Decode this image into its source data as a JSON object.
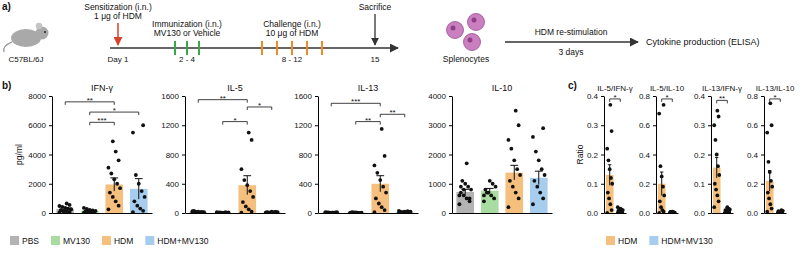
{
  "diagram": {
    "panel": "a)",
    "mouse_strain": "C57BL/6J",
    "sensitization": [
      "Sensitization (i.n.)",
      "1 μg of HDM"
    ],
    "immunization": [
      "Immunization (i.n.)",
      "MV130 or Vehicle"
    ],
    "challenge": [
      "Challenge (i.n.)",
      "10 μg of HDM"
    ],
    "sacrifice": "Sacrifice",
    "days": [
      "Day 1",
      "2 - 4",
      "8 - 12",
      "15"
    ],
    "cells": "Splenocytes",
    "restimulation": [
      "HDM re-stimulation",
      "3 days"
    ],
    "readout": "Cytokine production (ELISA)"
  },
  "chart_data": [
    {
      "type": "bar",
      "panel": "b)",
      "title": "IFN-γ",
      "y_label": "pg/ml",
      "legend": "bottom",
      "tick_labels": "y",
      "categories": [
        "PBS",
        "MV130",
        "HDM",
        "HDM+MV130"
      ],
      "colors": [
        "#b3b3b3",
        "#a8dca0",
        "#f5c07e",
        "#a7cdee"
      ],
      "values": [
        280,
        150,
        1950,
        1650
      ],
      "errors": [
        60,
        35,
        450,
        700
      ],
      "points": [
        [
          40,
          80,
          120,
          150,
          200,
          250,
          300,
          350,
          420,
          480,
          550,
          650,
          100,
          180,
          260
        ],
        [
          20,
          40,
          60,
          90,
          110,
          140,
          180,
          220,
          280,
          350,
          70
        ],
        [
          250,
          500,
          800,
          1100,
          1400,
          1700,
          2000,
          2300,
          2700,
          3100,
          3600,
          4200,
          4900
        ],
        [
          60,
          150,
          300,
          500,
          800,
          1100,
          1500,
          2000,
          2600,
          5500,
          6000
        ]
      ],
      "ylim": [
        0,
        8000
      ],
      "yticks": [
        0,
        2000,
        4000,
        6000,
        8000
      ],
      "annotations": [
        {
          "from": 0,
          "to": 2,
          "y": 7600,
          "text": "**"
        },
        {
          "from": 1,
          "to": 3,
          "y": 6900,
          "text": "*"
        },
        {
          "from": 1,
          "to": 2,
          "y": 6200,
          "text": "***"
        }
      ]
    },
    {
      "type": "bar",
      "title": "IL-5",
      "tick_labels": "y",
      "categories": [
        "PBS",
        "MV130",
        "HDM",
        "HDM+MV130"
      ],
      "colors": [
        "#b3b3b3",
        "#a8dca0",
        "#f5c07e",
        "#a7cdee"
      ],
      "values": [
        12,
        6,
        380,
        10
      ],
      "errors": [
        4,
        2,
        130,
        4
      ],
      "points": [
        [
          0,
          2,
          5,
          8,
          10,
          12,
          15,
          18,
          20,
          25,
          10,
          5,
          8,
          30
        ],
        [
          0,
          2,
          4,
          5,
          6,
          8,
          10,
          3,
          7,
          12
        ],
        [
          5,
          20,
          50,
          90,
          150,
          220,
          300,
          380,
          450,
          600,
          1000,
          1100
        ],
        [
          0,
          3,
          5,
          8,
          10,
          12,
          15,
          20,
          6,
          9,
          14
        ]
      ],
      "ylim": [
        0,
        1600
      ],
      "yticks": [
        0,
        400,
        800,
        1200,
        1600
      ],
      "annotations": [
        {
          "from": 0,
          "to": 2,
          "y": 1550,
          "text": "**"
        },
        {
          "from": 2,
          "to": 3,
          "y": 1450,
          "text": "*"
        },
        {
          "from": 1,
          "to": 2,
          "y": 1250,
          "text": "*"
        }
      ]
    },
    {
      "type": "bar",
      "title": "IL-13",
      "tick_labels": "y",
      "categories": [
        "PBS",
        "MV130",
        "HDM",
        "HDM+MV130"
      ],
      "colors": [
        "#b3b3b3",
        "#a8dca0",
        "#f5c07e",
        "#a7cdee"
      ],
      "values": [
        6,
        5,
        400,
        15
      ],
      "errors": [
        2,
        2,
        110,
        5
      ],
      "points": [
        [
          0,
          2,
          4,
          6,
          8,
          10,
          5,
          3,
          7,
          12,
          9,
          4
        ],
        [
          0,
          2,
          4,
          6,
          8,
          5,
          3,
          7,
          10
        ],
        [
          10,
          40,
          80,
          130,
          200,
          280,
          360,
          450,
          550,
          650,
          780,
          1150
        ],
        [
          2,
          5,
          8,
          12,
          15,
          20,
          25,
          18,
          10,
          30,
          14
        ]
      ],
      "ylim": [
        0,
        1600
      ],
      "yticks": [
        0,
        400,
        800,
        1200,
        1600
      ],
      "annotations": [
        {
          "from": 0,
          "to": 2,
          "y": 1500,
          "text": "***"
        },
        {
          "from": 2,
          "to": 3,
          "y": 1350,
          "text": "**"
        },
        {
          "from": 1,
          "to": 2,
          "y": 1250,
          "text": "**"
        }
      ]
    },
    {
      "type": "bar",
      "title": "IL-10",
      "tick_labels": "y",
      "categories": [
        "PBS",
        "MV130",
        "HDM",
        "HDM+MV130"
      ],
      "colors": [
        "#b3b3b3",
        "#a8dca0",
        "#f5c07e",
        "#a7cdee"
      ],
      "values": [
        720,
        760,
        1380,
        1200
      ],
      "errors": [
        90,
        80,
        250,
        230
      ],
      "points": [
        [
          300,
          400,
          500,
          600,
          700,
          800,
          900,
          1000,
          1100,
          600,
          500,
          1700,
          800,
          900
        ],
        [
          400,
          500,
          600,
          700,
          800,
          900,
          1000,
          1100,
          700,
          600
        ],
        [
          200,
          500,
          700,
          900,
          1100,
          1300,
          1500,
          1800,
          2200,
          2500,
          3000,
          3500
        ],
        [
          300,
          500,
          700,
          900,
          1100,
          1300,
          1500,
          1800,
          2100,
          2600,
          2900
        ]
      ],
      "ylim": [
        0,
        4000
      ],
      "yticks": [
        0,
        1000,
        2000,
        3000,
        4000
      ]
    },
    {
      "type": "bar",
      "panel": "c)",
      "title": "IL-5/IFN-γ",
      "y_label": "Ratio",
      "legend": "bottom",
      "tick_labels": "y",
      "categories": [
        "HDM",
        "HDM+MV130"
      ],
      "colors": [
        "#f5c07e",
        "#a7cdee"
      ],
      "values": [
        0.13,
        0.008
      ],
      "errors": [
        0.035,
        0.003
      ],
      "points": [
        [
          0.0,
          0.01,
          0.03,
          0.05,
          0.07,
          0.1,
          0.12,
          0.15,
          0.18,
          0.22,
          0.28,
          0.37
        ],
        [
          0.0,
          0.002,
          0.004,
          0.006,
          0.008,
          0.01,
          0.012,
          0.015,
          0.005,
          0.02
        ]
      ],
      "ylim": [
        0,
        0.4
      ],
      "yticks": [
        {
          "value": 0,
          "label": "0.0"
        },
        0.1,
        0.2,
        0.3,
        0.4
      ],
      "annotations": [
        {
          "from": 0,
          "to": 1,
          "y": 0.39,
          "text": "*"
        }
      ]
    },
    {
      "type": "bar",
      "title": "IL-5/IL-10",
      "tick_labels": "y",
      "categories": [
        "HDM",
        "HDM+MV130"
      ],
      "colors": [
        "#f5c07e",
        "#a7cdee"
      ],
      "values": [
        0.2,
        0.005
      ],
      "errors": [
        0.08,
        0.002
      ],
      "points": [
        [
          0.0,
          0.01,
          0.02,
          0.04,
          0.08,
          0.12,
          0.18,
          0.25,
          0.32,
          0.68,
          0.74
        ],
        [
          0.0,
          0.002,
          0.004,
          0.006,
          0.008,
          0.003,
          0.005,
          0.01,
          0.007
        ]
      ],
      "ylim": [
        0,
        0.8
      ],
      "yticks": [
        {
          "value": 0,
          "label": "0.0"
        },
        0.2,
        0.4,
        0.6,
        0.8
      ],
      "annotations": [
        {
          "from": 0,
          "to": 1,
          "y": 0.78,
          "text": "*"
        }
      ]
    },
    {
      "type": "bar",
      "title": "IL-13/IFN-γ",
      "tick_labels": "y",
      "categories": [
        "HDM",
        "HDM+MV130"
      ],
      "colors": [
        "#f5c07e",
        "#a7cdee"
      ],
      "values": [
        0.155,
        0.01
      ],
      "errors": [
        0.035,
        0.004
      ],
      "points": [
        [
          0.02,
          0.04,
          0.06,
          0.08,
          0.1,
          0.13,
          0.16,
          0.2,
          0.25,
          0.3,
          0.33,
          0.35
        ],
        [
          0.0,
          0.003,
          0.005,
          0.008,
          0.01,
          0.012,
          0.015,
          0.02,
          0.006
        ]
      ],
      "ylim": [
        0,
        0.4
      ],
      "yticks": [
        {
          "value": 0,
          "label": "0.0"
        },
        0.1,
        0.2,
        0.3,
        0.4
      ],
      "annotations": [
        {
          "from": 0,
          "to": 1,
          "y": 0.385,
          "text": "**"
        }
      ]
    },
    {
      "type": "bar",
      "title": "IL-13/IL-10",
      "tick_labels": "y",
      "categories": [
        "HDM",
        "HDM+MV130"
      ],
      "colors": [
        "#f5c07e",
        "#a7cdee"
      ],
      "values": [
        0.22,
        0.01
      ],
      "errors": [
        0.07,
        0.004
      ],
      "points": [
        [
          0.01,
          0.03,
          0.06,
          0.1,
          0.14,
          0.18,
          0.22,
          0.28,
          0.35,
          0.55,
          0.6,
          0.75
        ],
        [
          0.0,
          0.003,
          0.006,
          0.01,
          0.012,
          0.015,
          0.02,
          0.008,
          0.005
        ]
      ],
      "ylim": [
        0,
        0.8
      ],
      "yticks": [
        {
          "value": 0,
          "label": "0.0"
        },
        0.2,
        0.4,
        0.6,
        0.8
      ],
      "annotations": [
        {
          "from": 0,
          "to": 1,
          "y": 0.78,
          "text": "*"
        }
      ]
    }
  ]
}
